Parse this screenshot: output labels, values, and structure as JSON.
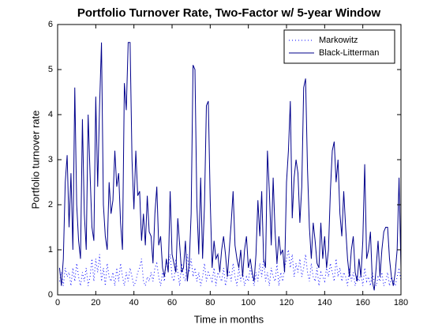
{
  "chart_data": {
    "type": "line",
    "title": "Portfolio Turnover Rate, Two-Factor w/ 5-year Window",
    "x_label": "Time in months",
    "y_label": "Portfolio turnover rate",
    "x": [
      1,
      2,
      3,
      4,
      5,
      6,
      7,
      8,
      9,
      10,
      11,
      12,
      13,
      14,
      15,
      16,
      17,
      18,
      19,
      20,
      21,
      22,
      23,
      24,
      25,
      26,
      27,
      28,
      29,
      30,
      31,
      32,
      33,
      34,
      35,
      36,
      37,
      38,
      39,
      40,
      41,
      42,
      43,
      44,
      45,
      46,
      47,
      48,
      49,
      50,
      51,
      52,
      53,
      54,
      55,
      56,
      57,
      58,
      59,
      60,
      61,
      62,
      63,
      64,
      65,
      66,
      67,
      68,
      69,
      70,
      71,
      72,
      73,
      74,
      75,
      76,
      77,
      78,
      79,
      80,
      81,
      82,
      83,
      84,
      85,
      86,
      87,
      88,
      89,
      90,
      91,
      92,
      93,
      94,
      95,
      96,
      97,
      98,
      99,
      100,
      101,
      102,
      103,
      104,
      105,
      106,
      107,
      108,
      109,
      110,
      111,
      112,
      113,
      114,
      115,
      116,
      117,
      118,
      119,
      120,
      121,
      122,
      123,
      124,
      125,
      126,
      127,
      128,
      129,
      130,
      131,
      132,
      133,
      134,
      135,
      136,
      137,
      138,
      139,
      140,
      141,
      142,
      143,
      144,
      145,
      146,
      147,
      148,
      149,
      150,
      151,
      152,
      153,
      154,
      155,
      156,
      157,
      158,
      159,
      160,
      161,
      162,
      163,
      164,
      165,
      166,
      167,
      168,
      169,
      170,
      171,
      172,
      173,
      174,
      175,
      176,
      177,
      178,
      179,
      180
    ],
    "series": [
      {
        "name": "Markowitz",
        "color": "#0000ff",
        "dash": "dotted",
        "values": [
          0.3,
          0.5,
          0.2,
          0.6,
          0.4,
          0.5,
          0.2,
          0.6,
          0.3,
          0.7,
          0.4,
          0.2,
          0.5,
          0.3,
          0.6,
          0.2,
          0.4,
          0.8,
          0.3,
          0.8,
          0.5,
          0.9,
          0.3,
          0.6,
          0.2,
          0.7,
          0.4,
          0.3,
          0.5,
          0.2,
          0.6,
          0.3,
          0.7,
          0.4,
          0.2,
          0.5,
          0.3,
          0.6,
          0.4,
          0.2,
          0.3,
          0.5,
          0.6,
          0.8,
          0.3,
          0.2,
          0.4,
          0.3,
          0.5,
          0.3,
          0.6,
          0.7,
          0.4,
          0.2,
          0.5,
          0.3,
          0.8,
          0.6,
          0.9,
          0.4,
          0.3,
          0.8,
          0.5,
          0.2,
          0.7,
          0.4,
          0.3,
          0.9,
          0.5,
          0.8,
          0.4,
          0.6,
          0.3,
          0.5,
          0.2,
          0.4,
          0.7,
          0.3,
          0.5,
          0.4,
          0.3,
          0.6,
          0.2,
          0.5,
          0.4,
          0.3,
          0.6,
          0.2,
          0.4,
          0.5,
          0.3,
          0.7,
          0.4,
          0.2,
          0.6,
          0.3,
          0.5,
          0.2,
          0.4,
          0.3,
          0.6,
          0.4,
          0.2,
          0.5,
          0.3,
          0.7,
          0.4,
          0.8,
          0.3,
          0.5,
          0.2,
          0.6,
          0.4,
          0.3,
          0.7,
          0.2,
          0.5,
          0.3,
          0.6,
          0.8,
          1.0,
          0.6,
          0.9,
          0.4,
          0.7,
          0.5,
          0.8,
          0.4,
          0.6,
          0.9,
          0.5,
          0.3,
          0.7,
          0.4,
          0.3,
          0.6,
          0.2,
          0.5,
          0.4,
          0.3,
          0.6,
          0.4,
          0.7,
          0.5,
          0.3,
          0.8,
          0.4,
          0.6,
          0.3,
          0.5,
          0.4,
          0.2,
          0.6,
          0.3,
          0.5,
          0.2,
          0.4,
          0.3,
          0.5,
          0.2,
          0.6,
          0.3,
          0.4,
          0.2,
          0.5,
          0.3,
          0.2,
          0.4,
          0.3,
          0.5,
          0.2,
          0.3,
          0.5,
          0.2,
          0.4,
          0.3,
          0.2,
          0.4,
          0.6,
          0.3
        ]
      },
      {
        "name": "Black-Litterman",
        "color": "#00008b",
        "dash": "solid",
        "values": [
          0.6,
          0.2,
          0.8,
          2.5,
          3.1,
          1.5,
          2.7,
          1.0,
          4.6,
          2.0,
          1.2,
          0.8,
          3.9,
          1.8,
          1.0,
          4.0,
          2.7,
          1.5,
          1.2,
          4.4,
          2.4,
          4.2,
          5.6,
          2.0,
          1.3,
          1.0,
          2.5,
          1.8,
          2.1,
          3.2,
          2.4,
          2.7,
          1.6,
          1.0,
          4.7,
          4.1,
          5.6,
          5.6,
          3.0,
          1.9,
          3.2,
          2.2,
          2.3,
          1.2,
          1.8,
          1.1,
          2.2,
          1.4,
          1.3,
          0.7,
          1.8,
          2.4,
          1.1,
          1.3,
          0.6,
          0.4,
          0.8,
          0.5,
          2.3,
          0.9,
          0.7,
          0.5,
          1.7,
          1.1,
          0.5,
          0.6,
          1.2,
          0.3,
          0.7,
          1.8,
          5.1,
          5.0,
          2.0,
          0.9,
          2.6,
          0.8,
          2.0,
          4.2,
          4.3,
          2.1,
          0.6,
          1.2,
          0.8,
          0.9,
          0.5,
          1.0,
          1.3,
          0.9,
          0.4,
          1.0,
          1.6,
          2.3,
          1.1,
          0.8,
          0.6,
          1.0,
          0.4,
          1.0,
          1.3,
          0.6,
          0.8,
          0.5,
          0.3,
          0.9,
          2.1,
          1.3,
          2.3,
          0.8,
          0.6,
          3.2,
          2.3,
          1.1,
          2.6,
          1.4,
          0.7,
          1.3,
          0.9,
          1.0,
          0.5,
          2.5,
          3.2,
          4.3,
          1.7,
          2.6,
          3.0,
          2.7,
          1.6,
          2.4,
          4.6,
          4.8,
          2.8,
          1.5,
          0.8,
          1.6,
          1.2,
          0.7,
          0.6,
          1.6,
          0.8,
          1.3,
          0.6,
          1.0,
          2.3,
          3.2,
          3.4,
          2.5,
          3.0,
          1.8,
          1.3,
          2.3,
          1.5,
          0.8,
          0.4,
          1.0,
          1.3,
          0.5,
          0.3,
          0.8,
          0.4,
          1.2,
          2.9,
          0.8,
          1.0,
          1.4,
          0.3,
          0.1,
          0.6,
          1.2,
          0.4,
          1.0,
          1.4,
          1.5,
          1.5,
          0.8,
          0.4,
          0.2,
          0.5,
          1.0,
          2.6,
          0.6
        ]
      }
    ],
    "xlim": [
      0,
      180
    ],
    "xticks": [
      0,
      20,
      40,
      60,
      80,
      100,
      120,
      140,
      160,
      180
    ],
    "ylim": [
      0,
      6
    ],
    "yticks": [
      0,
      1,
      2,
      3,
      4,
      5,
      6
    ],
    "legend": "northeast"
  }
}
